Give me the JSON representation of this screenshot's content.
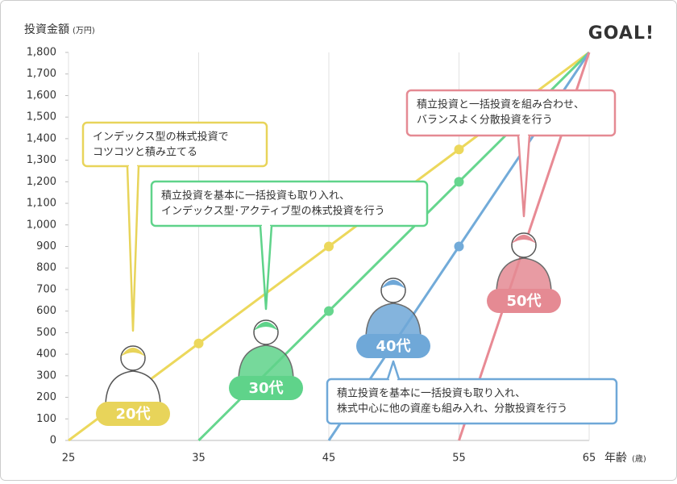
{
  "chart_data": {
    "type": "line",
    "title": "GOAL!",
    "y_label": "投資金額",
    "y_unit": "(万円)",
    "x_label": "年齢",
    "x_unit": "(歳)",
    "xlim": [
      25,
      65
    ],
    "xticks": [
      25,
      35,
      45,
      55,
      65
    ],
    "ylim": [
      0,
      1800
    ],
    "yticks": [
      0,
      100,
      200,
      300,
      400,
      500,
      600,
      700,
      800,
      900,
      {
        "value": 1000,
        "label": "1,000"
      },
      {
        "value": 1100,
        "label": "1,100"
      },
      {
        "value": 1200,
        "label": "1,200"
      },
      {
        "value": 1300,
        "label": "1,300"
      },
      {
        "value": 1400,
        "label": "1,400"
      },
      {
        "value": 1500,
        "label": "1,500"
      },
      {
        "value": 1600,
        "label": "1,600"
      },
      {
        "value": 1700,
        "label": "1,700"
      },
      {
        "value": 1800,
        "label": "1,800"
      }
    ],
    "grid": "x",
    "series": [
      {
        "color": "#ecd85c",
        "x": [
          25,
          35,
          45,
          55,
          65
        ],
        "values": [
          0,
          450,
          900,
          1350,
          1800
        ]
      },
      {
        "color": "#66d68e",
        "x": [
          35,
          45,
          55,
          65
        ],
        "values": [
          0,
          600,
          1200,
          1800
        ]
      },
      {
        "color": "#72abd9",
        "x": [
          45,
          55,
          65
        ],
        "values": [
          0,
          900,
          1800
        ]
      },
      {
        "color": "#e88a94",
        "x": [
          55,
          65
        ],
        "values": [
          0,
          1800
        ]
      }
    ],
    "badges": [
      {
        "text": "20代",
        "color": "#e8d45a"
      },
      {
        "text": "30代",
        "color": "#5fd38a"
      },
      {
        "text": "40代",
        "color": "#6fa8d8"
      },
      {
        "text": "50代",
        "color": "#e58a93"
      }
    ],
    "callouts": [
      {
        "color": "#e8d45a",
        "lines": [
          "インデックス型の株式投資で",
          "コツコツと積み立てる"
        ]
      },
      {
        "color": "#5fd38a",
        "lines": [
          "積立投資を基本に一括投資も取り入れ、",
          "インデックス型･アクティブ型の株式投資を行う"
        ]
      },
      {
        "color": "#6fa8d8",
        "lines": [
          "積立投資を基本に一括投資も取り入れ、",
          "株式中心に他の資産も組み入れ、分散投資を行う"
        ]
      },
      {
        "color": "#e58a93",
        "lines": [
          "積立投資と一括投資を組み合わせ、",
          "バランスよく分散投資を行う"
        ]
      }
    ]
  }
}
